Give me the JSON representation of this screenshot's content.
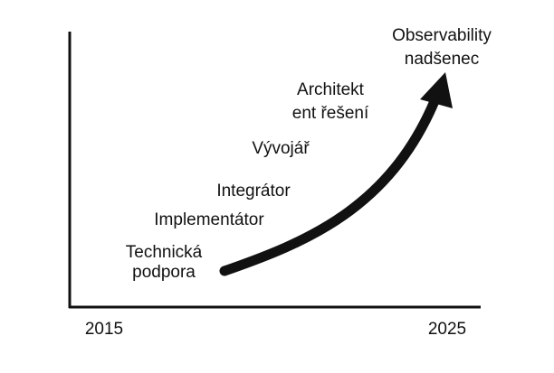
{
  "x_axis": {
    "start": "2015",
    "end": "2025"
  },
  "stages": [
    {
      "lines": [
        "Technická",
        "podpora"
      ]
    },
    {
      "lines": [
        "Implementátor"
      ]
    },
    {
      "lines": [
        "Integrátor"
      ]
    },
    {
      "lines": [
        "Vývojář"
      ]
    },
    {
      "lines": [
        "Architekt",
        "ent řešení"
      ]
    },
    {
      "lines": [
        "Observability",
        "nadšenec"
      ]
    }
  ]
}
